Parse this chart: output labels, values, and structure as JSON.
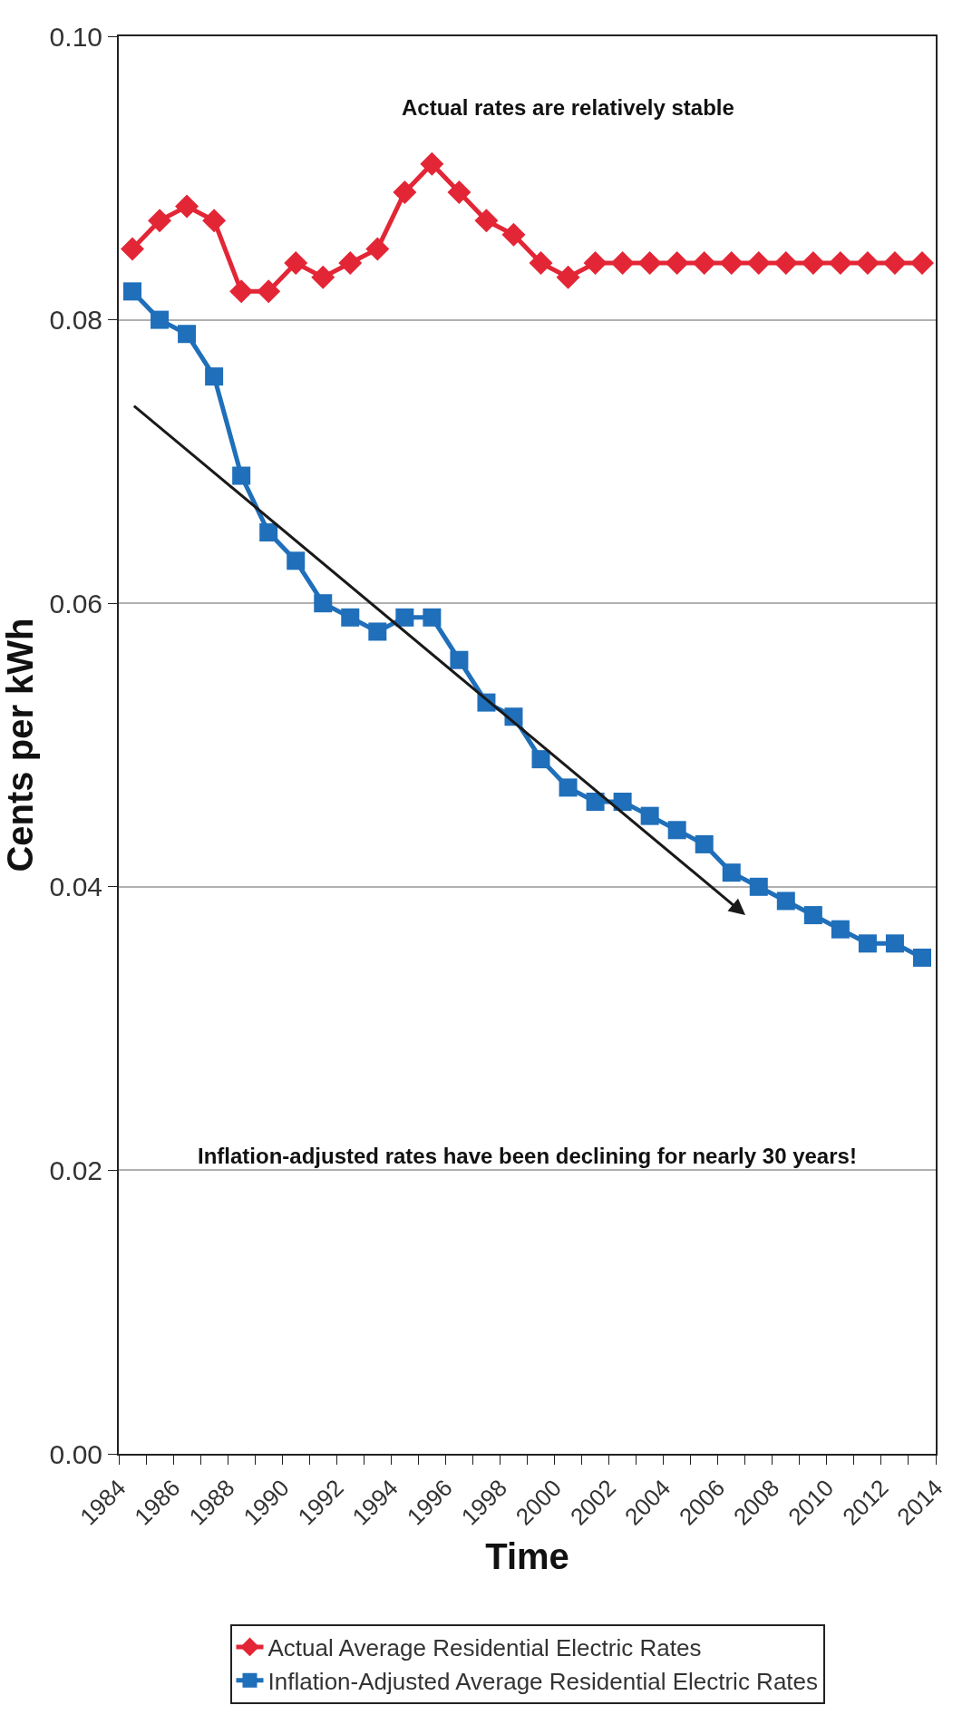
{
  "chart_data": {
    "type": "line",
    "xlabel": "Time",
    "ylabel": "Cents per kWh",
    "x": [
      1984.5,
      1985.5,
      1986.5,
      1987.5,
      1988.5,
      1989.5,
      1990.5,
      1991.5,
      1992.5,
      1993.5,
      1994.5,
      1995.5,
      1996.5,
      1997.5,
      1998.5,
      1999.5,
      2000.5,
      2001.5,
      2002.5,
      2003.5,
      2004.5,
      2005.5,
      2006.5,
      2007.5,
      2008.5,
      2009.5,
      2010.5,
      2011.5,
      2012.5,
      2013.5
    ],
    "series": [
      {
        "name": "Actual Average Residential Electric Rates",
        "color": "#e32636",
        "marker": "diamond",
        "values": [
          0.085,
          0.087,
          0.088,
          0.087,
          0.082,
          0.082,
          0.084,
          0.083,
          0.084,
          0.085,
          0.089,
          0.091,
          0.089,
          0.087,
          0.086,
          0.084,
          0.083,
          0.084,
          0.084,
          0.084,
          0.084,
          0.084,
          0.084,
          0.084,
          0.084,
          0.084,
          0.084,
          0.084,
          0.084,
          0.084
        ]
      },
      {
        "name": "Inflation-Adjusted Average Residential Electric Rates",
        "color": "#1f6fba",
        "marker": "square",
        "values": [
          0.082,
          0.08,
          0.079,
          0.076,
          0.069,
          0.065,
          0.063,
          0.06,
          0.059,
          0.058,
          0.059,
          0.059,
          0.056,
          0.053,
          0.052,
          0.049,
          0.047,
          0.046,
          0.046,
          0.045,
          0.044,
          0.043,
          0.041,
          0.04,
          0.039,
          0.038,
          0.037,
          0.036,
          0.036,
          0.035
        ]
      }
    ],
    "xlim": [
      1984,
      2014
    ],
    "xticks": [
      1984,
      {
        "value": 1985,
        "label": null
      },
      1986,
      {
        "value": 1987,
        "label": null
      },
      1988,
      {
        "value": 1989,
        "label": null
      },
      1990,
      {
        "value": 1991,
        "label": null
      },
      1992,
      {
        "value": 1993,
        "label": null
      },
      1994,
      {
        "value": 1995,
        "label": null
      },
      1996,
      {
        "value": 1997,
        "label": null
      },
      1998,
      {
        "value": 1999,
        "label": null
      },
      2000,
      {
        "value": 2001,
        "label": null
      },
      2002,
      {
        "value": 2003,
        "label": null
      },
      2004,
      {
        "value": 2005,
        "label": null
      },
      2006,
      {
        "value": 2007,
        "label": null
      },
      2008,
      {
        "value": 2009,
        "label": null
      },
      2010,
      {
        "value": 2011,
        "label": null
      },
      2012,
      {
        "value": 2013,
        "label": null
      },
      2014
    ],
    "ylim": [
      0.0,
      0.1
    ],
    "yticks": [
      {
        "value": 0.0,
        "label": "0.00"
      },
      {
        "value": 0.02,
        "label": "0.02"
      },
      {
        "value": 0.04,
        "label": "0.04"
      },
      {
        "value": 0.06,
        "label": "0.06"
      },
      {
        "value": 0.08,
        "label": "0.08"
      },
      {
        "value": 0.1,
        "label": "0.10"
      }
    ],
    "annotations": [
      "Actual rates are relatively stable",
      "Inflation-adjusted rates have been declining for nearly 30 years!"
    ],
    "grid": "y",
    "legend": "bottom",
    "line_style": "solid"
  }
}
